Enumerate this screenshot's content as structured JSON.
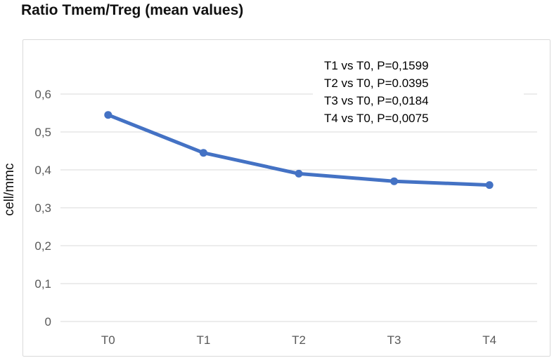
{
  "chart_data": {
    "type": "line",
    "title": "Ratio Tmem/Treg (mean values)",
    "ylabel": "cell/mmc",
    "xlabel": "",
    "categories": [
      "T0",
      "T1",
      "T2",
      "T3",
      "T4"
    ],
    "series": [
      {
        "name": "Ratio Tmem/Treg mean",
        "values": [
          0.545,
          0.445,
          0.39,
          0.37,
          0.36
        ]
      }
    ],
    "ylim": [
      0,
      0.6
    ],
    "ytick_step": 0.1,
    "ytick_labels": [
      "0",
      "0,1",
      "0,2",
      "0,3",
      "0,4",
      "0,5",
      "0,6"
    ],
    "grid": true,
    "legend": "none",
    "annotations": [
      "T1 vs T0, P=0,1599",
      "T2 vs T0, P=0.0395",
      "T3 vs T0, P=0,0184",
      "T4 vs T0, P=0,0075"
    ]
  },
  "colors": {
    "line": "#4472C4",
    "marker": "#4472C4",
    "grid": "#d9d9d9",
    "axis": "#d9d9d9",
    "tick_text": "#595959",
    "annotation_text": "#000000",
    "title_text": "#111111",
    "border": "#d9d9d9"
  }
}
